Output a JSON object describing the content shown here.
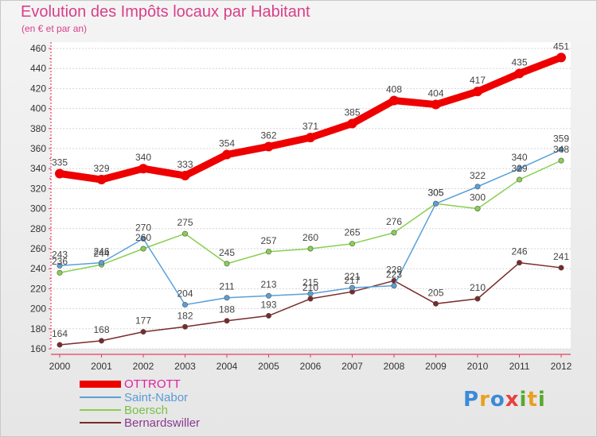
{
  "title": "Evolution des Impôts locaux par Habitant",
  "subtitle": "(en € et par an)",
  "logo": {
    "letters": [
      {
        "ch": "P",
        "color": "#3a8ad8"
      },
      {
        "ch": "r",
        "color": "#e8a020"
      },
      {
        "ch": "o",
        "color": "#3a8ad8"
      },
      {
        "ch": "x",
        "color": "#e84040"
      },
      {
        "ch": "i",
        "color": "#5aa830"
      },
      {
        "ch": "t",
        "color": "#e8a020"
      },
      {
        "ch": "i",
        "color": "#5aa830"
      }
    ]
  },
  "chart_data": {
    "type": "line",
    "title": "Evolution des Impôts locaux par Habitant",
    "ylabel": "(en € et par an)",
    "x": [
      "2000",
      "2001",
      "2002",
      "2003",
      "2004",
      "2005",
      "2006",
      "2007",
      "2008",
      "2009",
      "2010",
      "2011",
      "2012"
    ],
    "ylim": [
      160,
      460
    ],
    "yticks": [
      "160",
      "180",
      "200",
      "220",
      "240",
      "260",
      "280",
      "300",
      "320",
      "340",
      "360",
      "380",
      "400",
      "420",
      "440",
      "460"
    ],
    "grid": true,
    "legend_position": "bottom-left",
    "series": [
      {
        "name": "OTTROTT",
        "color": "#ee0000",
        "width": 9,
        "marker": 6,
        "values": [
          335,
          329,
          340,
          333,
          354,
          362,
          371,
          385,
          408,
          404,
          417,
          435,
          451
        ],
        "labels": [
          "335",
          "329",
          "340",
          "333",
          "354",
          "362",
          "371",
          "385",
          "408",
          "404",
          "417",
          "435",
          "451"
        ]
      },
      {
        "name": "Saint-Nabor",
        "color": "#5aa0d8",
        "width": 1.5,
        "marker": 3.2,
        "values": [
          243,
          246,
          270,
          204,
          211,
          213,
          215,
          221,
          223,
          305,
          322,
          340,
          359
        ],
        "labels": [
          "243",
          "246",
          "270",
          "204",
          "211",
          "213",
          "215",
          "221",
          "223",
          "305",
          "322",
          "340",
          "359"
        ]
      },
      {
        "name": "Boersch",
        "color": "#88d050",
        "width": 1.5,
        "marker": 3.2,
        "values": [
          236,
          244,
          260,
          275,
          245,
          257,
          260,
          265,
          276,
          305,
          300,
          329,
          348
        ],
        "labels": [
          "236",
          "244",
          "260",
          "275",
          "245",
          "257",
          "260",
          "265",
          "276",
          "305",
          "300",
          "329",
          "348"
        ]
      },
      {
        "name": "Bernardswiller",
        "color": "#7a2a2a",
        "width": 1.5,
        "marker": 3.2,
        "values": [
          164,
          168,
          177,
          182,
          188,
          193,
          210,
          217,
          228,
          205,
          210,
          246,
          241
        ],
        "labels": [
          "164",
          "168",
          "177",
          "182",
          "188",
          "193",
          "210",
          "217",
          "228",
          "205",
          "210",
          "246",
          "241"
        ]
      }
    ]
  }
}
